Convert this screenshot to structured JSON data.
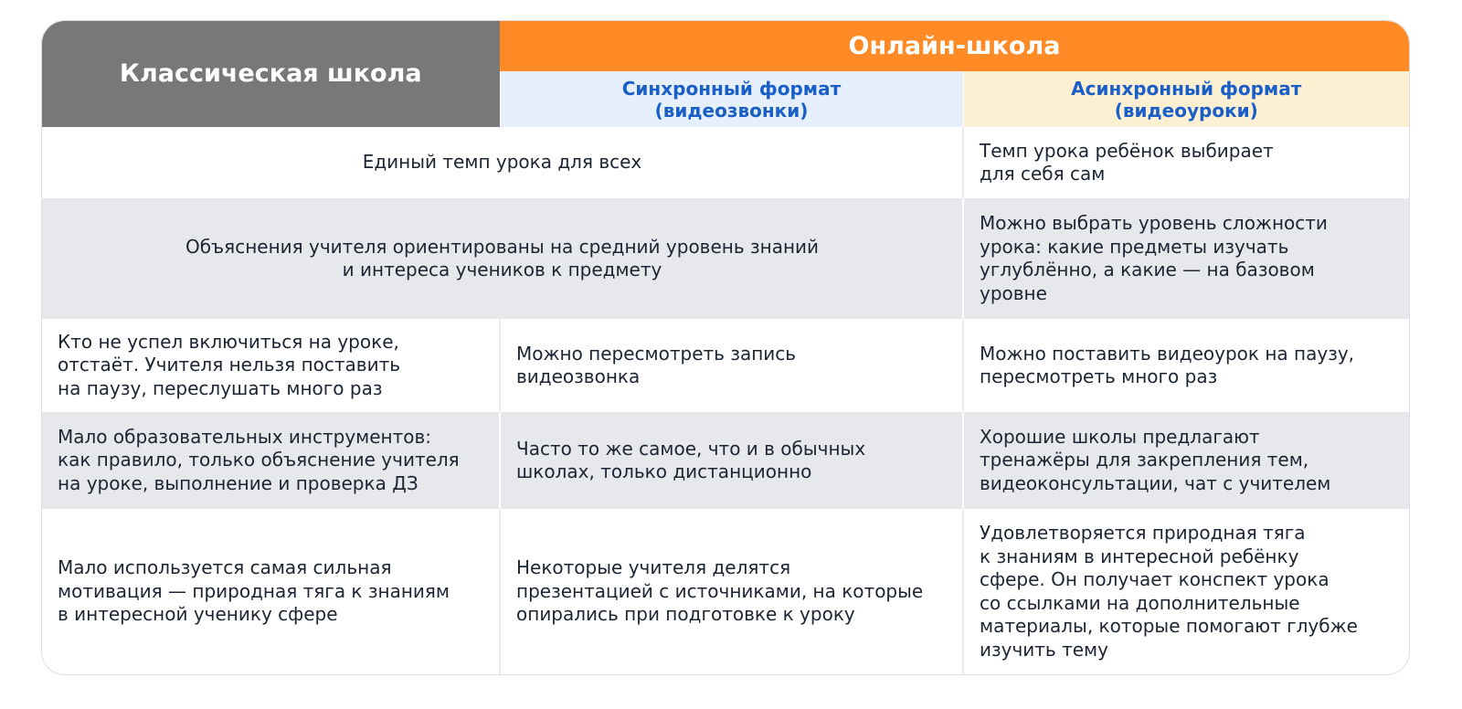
{
  "header": {
    "classic": "Классическая школа",
    "online": "Онлайн-школа",
    "sync": [
      "Синхронный формат",
      "(видеозвонки)"
    ],
    "async": [
      "Асинхронный формат",
      "(видеоуроки)"
    ]
  },
  "rows": [
    [
      [
        "Единый темп урока для всех"
      ],
      [
        "Темп урока ребёнок выбирает",
        "для себя сам"
      ]
    ],
    [
      [
        "Объяснения учителя ориентированы на средний уровень знаний",
        "и интереса учеников к предмету"
      ],
      [
        "Можно выбрать уровень сложности",
        "урока: какие предметы изучать",
        "углублённо, а какие — на базовом",
        "уровне"
      ]
    ],
    [
      [
        "Кто не успел включиться на уроке,",
        "отстаёт. Учителя нельзя поставить",
        "на паузу, переслушать много раз"
      ],
      [
        "Можно пересмотреть запись",
        "видеозвонка"
      ],
      [
        "Можно поставить видеоурок на паузу,",
        "пересмотреть много раз"
      ]
    ],
    [
      [
        "Мало образовательных инструментов:",
        "как правило, только объяснение учителя",
        "на уроке, выполнение и проверка ДЗ"
      ],
      [
        "Часто то же самое, что и в обычных",
        "школах, только дистанционно"
      ],
      [
        "Хорошие школы предлагают",
        "тренажёры для закрепления тем,",
        "видеоконсультации, чат с учителем"
      ]
    ],
    [
      [
        "Мало используется самая сильная",
        "мотивация — природная тяга к знаниям",
        "в интересной ученику сфере"
      ],
      [
        "Некоторые учителя делятся",
        "презентацией с источниками, на которые",
        "опирались при подготовке к уроку"
      ],
      [
        "Удовлетворяется природная тяга",
        "к знаниям в интересной ребёнку",
        "сфере. Он получает конспект урока",
        "со ссылками на дополнительные",
        "материалы, которые помогают глубже",
        "изучить тему"
      ]
    ]
  ]
}
